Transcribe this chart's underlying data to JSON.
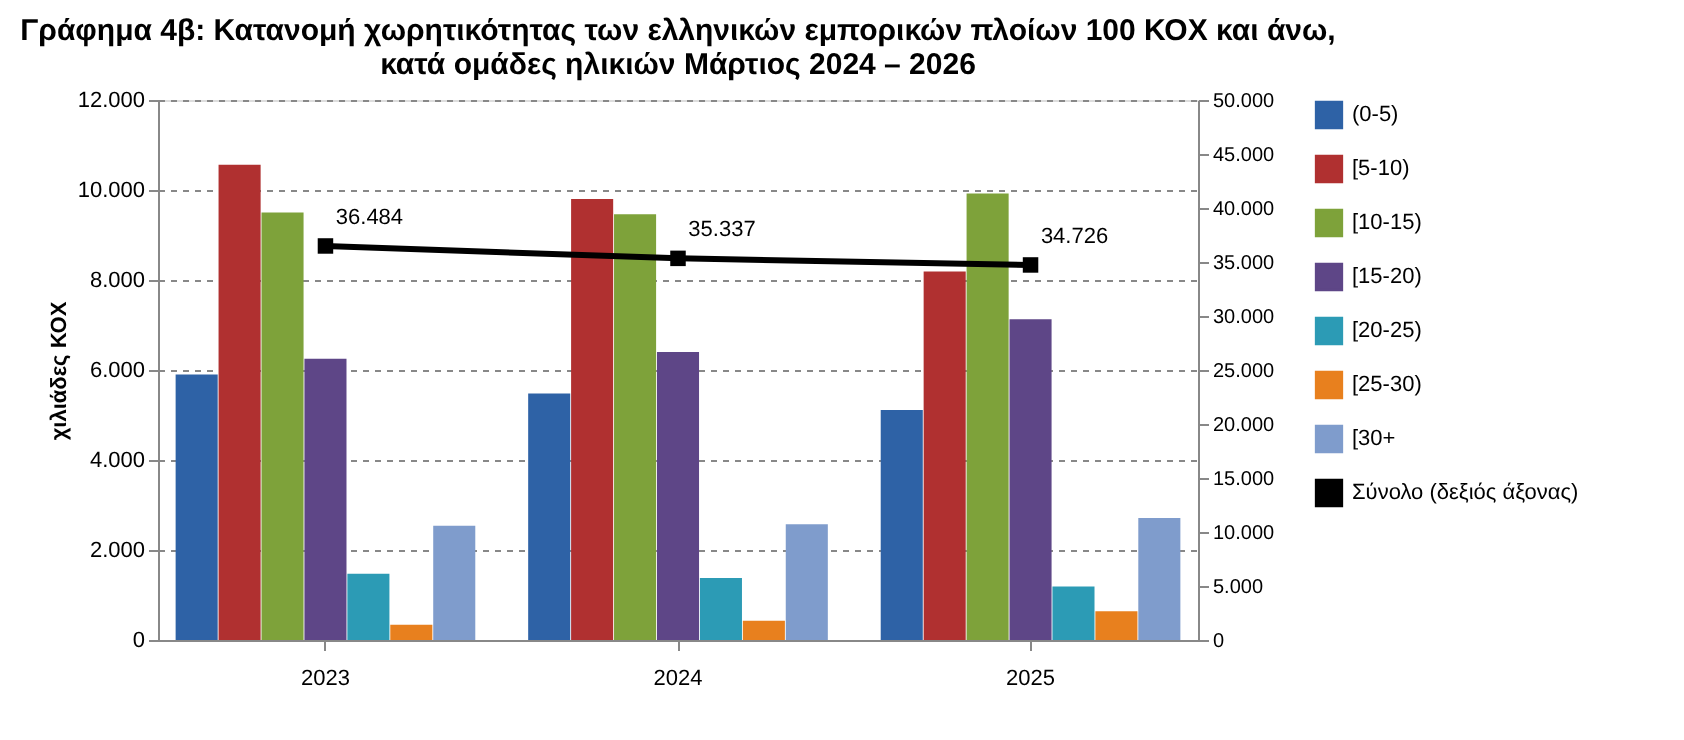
{
  "chart_data": {
    "type": "bar",
    "title": [
      "Γράφημα 4β: Κατανομή χωρητικότητας των ελληνικών εμπορικών πλοίων 100 ΚΟΧ και άνω,",
      "κατά ομάδες ηλικιών Μάρτιος 2024 – 2026"
    ],
    "ylabel": "χιλιάδες ΚΟΧ",
    "categories": [
      "2023",
      "2024",
      "2025"
    ],
    "series": [
      {
        "name": "(0-5)",
        "color": "#2e62a6",
        "values": [
          5900,
          5480,
          5110
        ]
      },
      {
        "name": "[5-10)",
        "color": "#b03030",
        "values": [
          10560,
          9800,
          8190
        ]
      },
      {
        "name": "[10-15)",
        "color": "#7ea23a",
        "values": [
          9500,
          9460,
          9920
        ]
      },
      {
        "name": "[15-20)",
        "color": "#5e4687",
        "values": [
          6250,
          6400,
          7130
        ]
      },
      {
        "name": "[20-25)",
        "color": "#2c9bb5",
        "values": [
          1470,
          1380,
          1190
        ]
      },
      {
        "name": "[25-30)",
        "color": "#e8801e",
        "values": [
          340,
          430,
          640
        ]
      },
      {
        "name": "[30+",
        "color": "#7f9ccc",
        "values": [
          2540,
          2570,
          2710
        ]
      },
      {
        "name": "Σύνολο (δεξιός άξονας)",
        "color": "#000000",
        "type": "line",
        "axis": "y2",
        "marker": "square",
        "values": [
          36484,
          35337,
          34726
        ],
        "value_labels": [
          "36.484",
          "35.337",
          "34.726"
        ]
      }
    ],
    "ylim": [
      0,
      12000
    ],
    "yticks": [
      {
        "value": 0,
        "label": "0"
      },
      {
        "value": 2000,
        "label": "2.000"
      },
      {
        "value": 4000,
        "label": "4.000"
      },
      {
        "value": 6000,
        "label": "6.000"
      },
      {
        "value": 8000,
        "label": "8.000"
      },
      {
        "value": 10000,
        "label": "10.000"
      },
      {
        "value": 12000,
        "label": "12.000"
      }
    ],
    "y2lim": [
      0,
      50000
    ],
    "y2ticks": [
      {
        "value": 0,
        "label": "0"
      },
      {
        "value": 5000,
        "label": "5.000"
      },
      {
        "value": 10000,
        "label": "10.000"
      },
      {
        "value": 15000,
        "label": "15.000"
      },
      {
        "value": 20000,
        "label": "20.000"
      },
      {
        "value": 25000,
        "label": "25.000"
      },
      {
        "value": 30000,
        "label": "30.000"
      },
      {
        "value": 35000,
        "label": "35.000"
      },
      {
        "value": 40000,
        "label": "40.000"
      },
      {
        "value": 45000,
        "label": "45.000"
      },
      {
        "value": 50000,
        "label": "50.000"
      }
    ],
    "grid": "y",
    "legend": "right"
  }
}
